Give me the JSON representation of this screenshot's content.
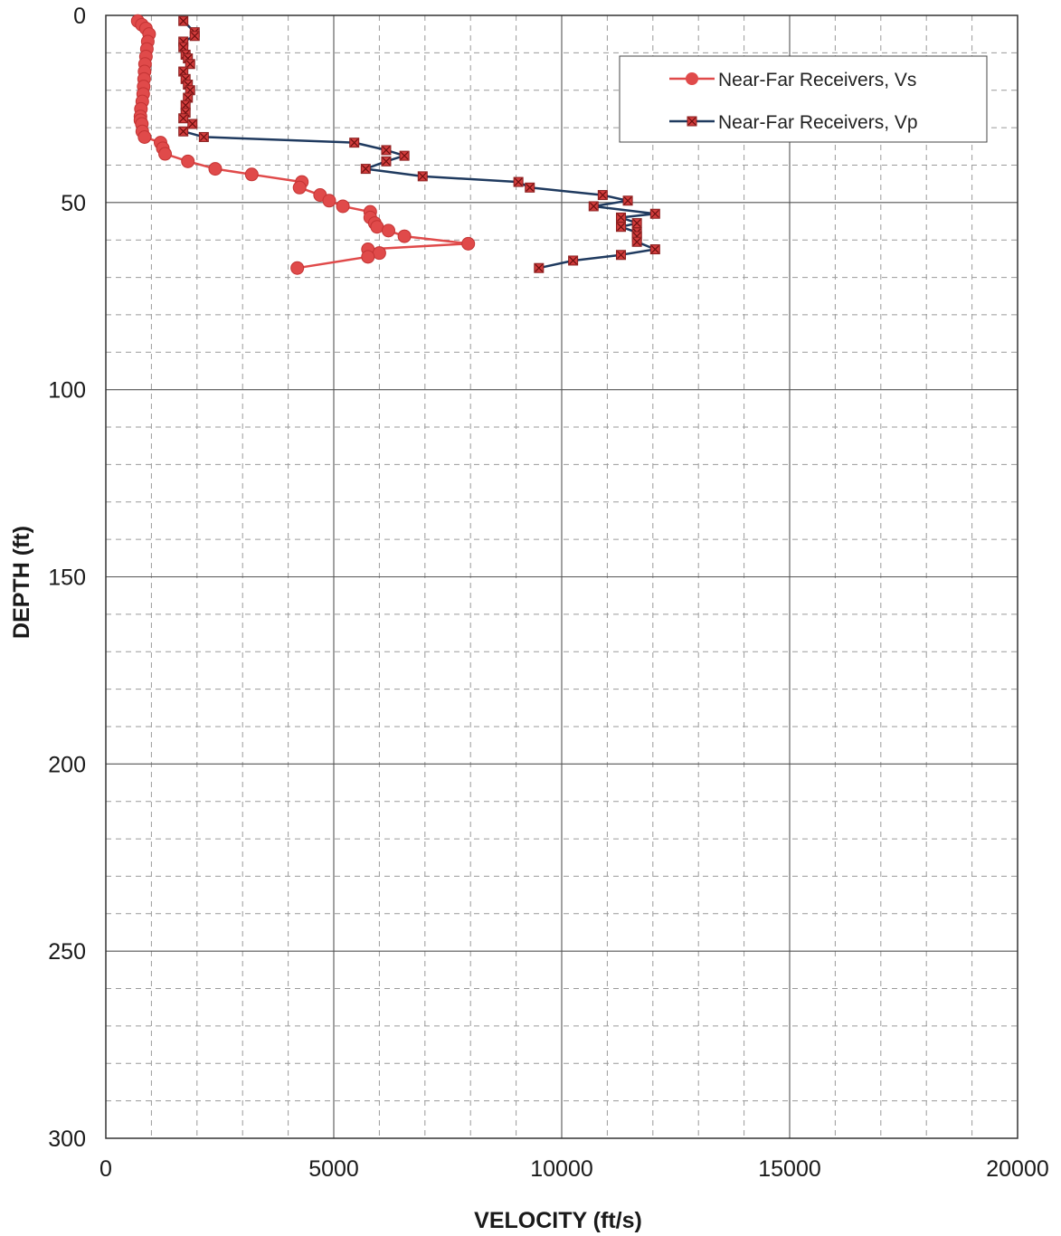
{
  "chart_data": {
    "type": "scatter",
    "xlabel": "VELOCITY (ft/s)",
    "ylabel": "DEPTH (ft)",
    "xlim": [
      0,
      20000
    ],
    "ylim": [
      0,
      300
    ],
    "y_inverted": true,
    "x_ticks": [
      0,
      5000,
      10000,
      15000,
      20000
    ],
    "y_ticks": [
      0,
      50,
      100,
      150,
      200,
      250,
      300
    ],
    "x_ticks_labels": [
      "0",
      "5000",
      "10000",
      "15000",
      "20000"
    ],
    "y_ticks_labels": [
      "0",
      "50",
      "100",
      "150",
      "200",
      "250",
      "300"
    ],
    "grid": "major solid, minor dashed",
    "legend_position": "top-right",
    "colors": {
      "vs": "#e04a4a",
      "vp": "#1f3a5f",
      "vp_marker": "#d23c3c"
    },
    "series": [
      {
        "name": "Near-Far Receivers, Vs",
        "marker": "circle",
        "points": [
          [
            700,
            1.5
          ],
          [
            790,
            2.5
          ],
          [
            880,
            3.5
          ],
          [
            950,
            5
          ],
          [
            920,
            7
          ],
          [
            900,
            9
          ],
          [
            880,
            11
          ],
          [
            860,
            13
          ],
          [
            850,
            15
          ],
          [
            840,
            17
          ],
          [
            830,
            19
          ],
          [
            820,
            21
          ],
          [
            800,
            23
          ],
          [
            770,
            25
          ],
          [
            760,
            27
          ],
          [
            760,
            28
          ],
          [
            790,
            29
          ],
          [
            800,
            31
          ],
          [
            850,
            32.5
          ],
          [
            1200,
            34
          ],
          [
            1250,
            35.5
          ],
          [
            1300,
            37
          ],
          [
            1800,
            39
          ],
          [
            2400,
            41
          ],
          [
            3200,
            42.5
          ],
          [
            4300,
            44.5
          ],
          [
            4250,
            46
          ],
          [
            4700,
            48
          ],
          [
            4900,
            49.5
          ],
          [
            5200,
            51
          ],
          [
            5800,
            52.5
          ],
          [
            5800,
            54
          ],
          [
            5900,
            55.5
          ],
          [
            5950,
            56.5
          ],
          [
            6200,
            57.5
          ],
          [
            6550,
            59
          ],
          [
            7950,
            61
          ],
          [
            5750,
            62.5
          ],
          [
            6000,
            63.5
          ],
          [
            5750,
            64.5
          ],
          [
            4200,
            67.5
          ]
        ]
      },
      {
        "name": "Near-Far Receivers, Vp",
        "marker": "square-x",
        "points": [
          [
            1700,
            1.5
          ],
          [
            1950,
            4.5
          ],
          [
            1950,
            5.5
          ],
          [
            1700,
            7
          ],
          [
            1700,
            8.5
          ],
          [
            1750,
            10.5
          ],
          [
            1800,
            11.5
          ],
          [
            1850,
            13
          ],
          [
            1700,
            15
          ],
          [
            1750,
            17
          ],
          [
            1800,
            18.5
          ],
          [
            1850,
            20
          ],
          [
            1800,
            22
          ],
          [
            1750,
            24
          ],
          [
            1750,
            26
          ],
          [
            1700,
            27.5
          ],
          [
            1900,
            29
          ],
          [
            1700,
            31
          ],
          [
            2150,
            32.5
          ],
          [
            5450,
            34
          ],
          [
            6150,
            36
          ],
          [
            6550,
            37.5
          ],
          [
            6150,
            39
          ],
          [
            5700,
            41
          ],
          [
            6950,
            43
          ],
          [
            9050,
            44.5
          ],
          [
            9300,
            46
          ],
          [
            10900,
            48
          ],
          [
            11450,
            49.5
          ],
          [
            10700,
            51
          ],
          [
            12050,
            53
          ],
          [
            11300,
            54
          ],
          [
            11650,
            55.5
          ],
          [
            11300,
            56.5
          ],
          [
            11650,
            58
          ],
          [
            11650,
            59
          ],
          [
            11650,
            60.5
          ],
          [
            12050,
            62.5
          ],
          [
            11300,
            64
          ],
          [
            10250,
            65.5
          ],
          [
            9500,
            67.5
          ]
        ]
      }
    ]
  }
}
